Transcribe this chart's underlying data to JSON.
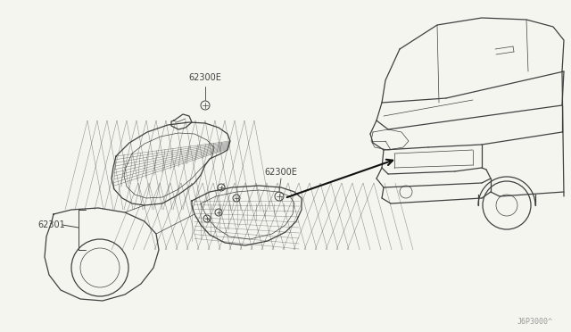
{
  "bg_color": "#f5f5f0",
  "line_color": "#404040",
  "text_color": "#404040",
  "light_line": "#888888",
  "label_62300E_top": "62300E",
  "label_62300E_mid": "62300E",
  "label_62301": "62301",
  "diagram_code": "J6P3000^",
  "fs_label": 7,
  "fs_code": 6
}
